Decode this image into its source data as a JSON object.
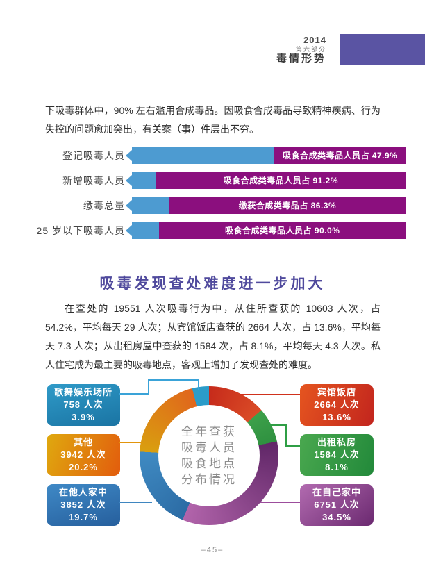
{
  "header": {
    "year": "2014",
    "part": "第六部分",
    "title": "毒情形势"
  },
  "paragraphs": {
    "intro": "下吸毒群体中，90% 左右滥用合成毒品。因吸食合成毒品导致精神疾病、行为失控的问题愈加突出，有关案（事）件层出不穷。",
    "section_body": "在查处的 19551 人次吸毒行为中，从住所查获的 10603 人次，占 54.2%，平均每天 29 人次；从宾馆饭店查获的 2664 人次，占 13.6%，平均每天 7.3 人次；从出租房屋中查获的 1584 次，占 8.1%，平均每天 4.3 人次。私人住宅成为最主要的吸毒地点，客观上增加了发现查处的难度。"
  },
  "section": {
    "title": "吸毒发现查处难度进一步加大"
  },
  "chart_data": [
    {
      "type": "bar",
      "orientation": "horizontal-stacked",
      "categories": [
        "登记吸毒人员",
        "新增吸毒人员",
        "缴毒总量",
        "25 岁以下吸毒人员"
      ],
      "series": [
        {
          "name": "合成类毒品占比(紫色)",
          "values": [
            47.9,
            91.2,
            86.3,
            90.0
          ]
        },
        {
          "name": "其余占比(蓝色)",
          "values": [
            52.1,
            8.8,
            13.7,
            10.0
          ]
        }
      ],
      "bar_labels": [
        "吸食合成类毒品人员占 47.9%",
        "吸食合成类毒品人员占 91.2%",
        "缴获合成类毒品占 86.3%",
        "吸食合成类毒品人员占 90.0%"
      ],
      "colors": {
        "filled": "#8B0F7E",
        "remainder": "#4D9BD1"
      },
      "xlim": [
        0,
        100
      ],
      "grid": false,
      "legend_position": "none"
    },
    {
      "type": "pie",
      "subtype": "donut",
      "title": "全年查获吸毒人员吸食地点分布情况",
      "center_text_lines": [
        "全年查获",
        "吸毒人员",
        "吸食地点",
        "分布情况"
      ],
      "slices_clockwise_from_top": [
        {
          "label": "宾馆饭店",
          "count_text": "2664 人次",
          "pct_text": "13.6%",
          "pct": 13.6,
          "color": "#C62B1B",
          "color2": "#DA4B26"
        },
        {
          "label": "出租私房",
          "count_text": "1584 人次",
          "pct_text": "8.1%",
          "pct": 8.1,
          "color": "#3DA04A",
          "color2": "#2F9140"
        },
        {
          "label": "在自己家中",
          "count_text": "6751 人次",
          "pct_text": "34.5%",
          "pct": 34.5,
          "color": "#612768",
          "color2": "#B264AB"
        },
        {
          "label": "在他人家中",
          "count_text": "3852 人次",
          "pct_text": "19.7%",
          "pct": 19.7,
          "color": "#2C6CA5",
          "color2": "#3F8AC2"
        },
        {
          "label": "其他",
          "count_text": "3942 人次",
          "pct_text": "20.2%",
          "pct": 20.2,
          "color": "#D99F0F",
          "color2": "#E0661C"
        },
        {
          "label": "歌舞娱乐场所",
          "count_text": "758 人次",
          "pct_text": "3.9%",
          "pct": 3.9,
          "color": "#2B9CC9",
          "color2": "#2B9CC9"
        }
      ],
      "legend_position": "callout-boxes"
    }
  ],
  "footer": {
    "page_number": "–45–"
  }
}
